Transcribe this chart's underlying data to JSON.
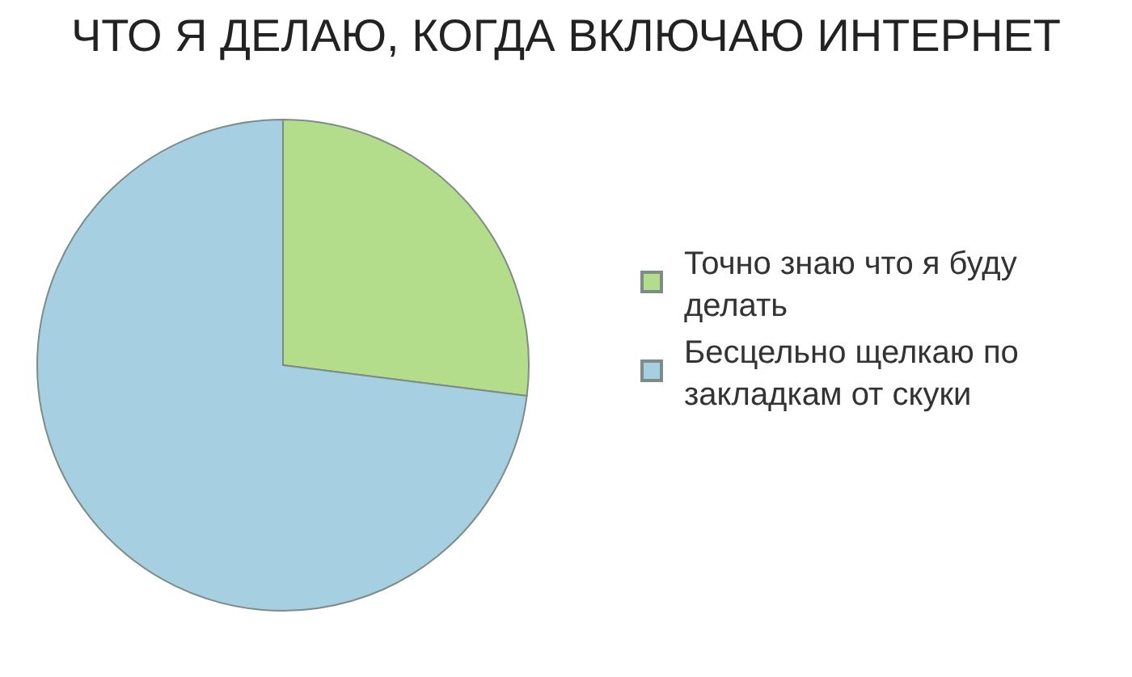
{
  "chart_data": {
    "type": "pie",
    "title": "ЧТО Я ДЕЛАЮ, КОГДА ВКЛЮЧАЮ ИНТЕРНЕТ",
    "categories": [
      "Точно знаю что я буду делать",
      "Бесцельно щелкаю по закладкам от скуки"
    ],
    "values": [
      27,
      73
    ],
    "colors": [
      "#b3dd8b",
      "#a7cfe2"
    ],
    "legend": "right"
  }
}
